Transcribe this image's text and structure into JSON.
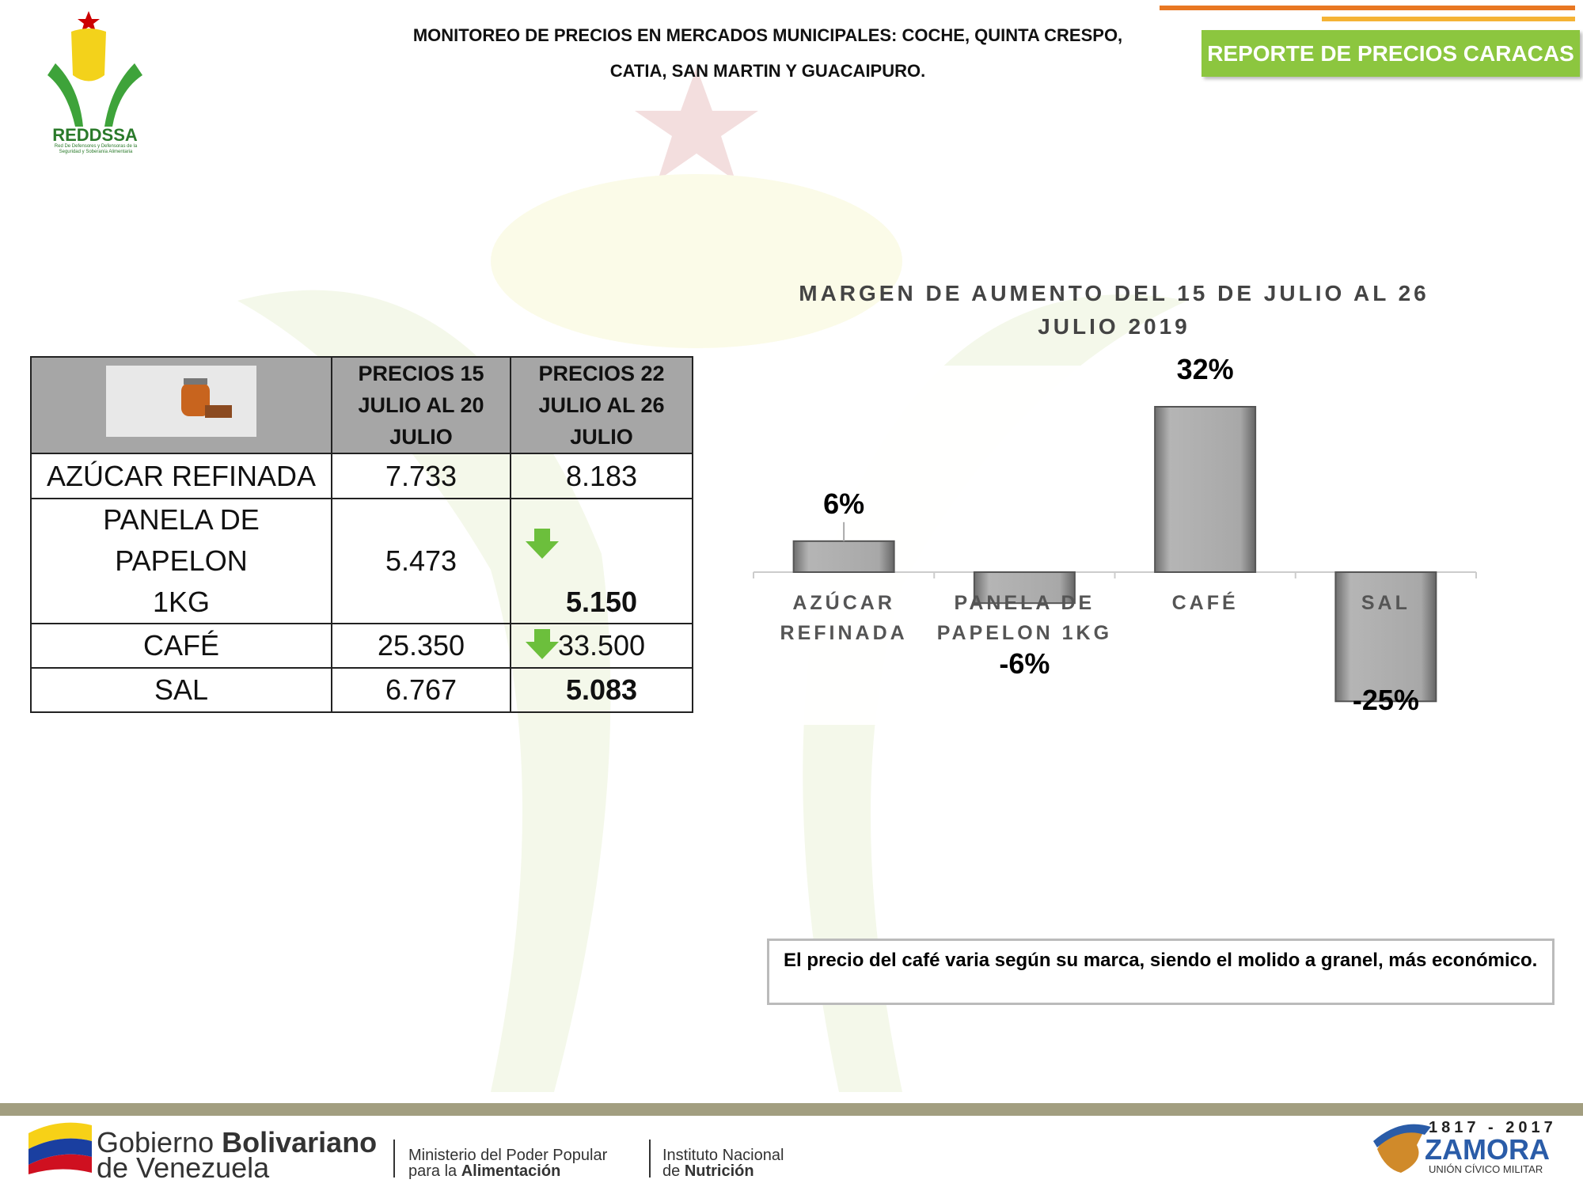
{
  "header": {
    "title_lines": [
      "MONITOREO DE PRECIOS EN MERCADOS MUNICIPALES: COCHE, QUINTA CRESPO,",
      "CATIA, SAN MARTIN Y GUACAIPURO."
    ],
    "badge": "REPORTE DE PRECIOS CARACAS",
    "logo_name": "REDDSSA",
    "logo_subtitle": "Red De Defensores y Defensoras de la Seguridad y Soberanía Alimentaria"
  },
  "table": {
    "header": [
      "PRECIOS 15 JULIO AL 20 JULIO",
      "PRECIOS 22 JULIO AL 26 JULIO"
    ],
    "rows": [
      [
        "AZÚCAR REFINADA",
        "7.733",
        "8.183"
      ],
      [
        "PANELA DE PAPELON 1KG",
        "5.473",
        "5.150"
      ],
      [
        "CAFÉ",
        "25.350",
        "33.500"
      ],
      [
        "SAL",
        "6.767",
        "5.083"
      ]
    ]
  },
  "chart_data": {
    "type": "bar",
    "title": "MARGEN DE AUMENTO DEL  15 DE JULIO AL 26 JULIO 2019",
    "categories": [
      "AZÚCAR REFINADA",
      "PANELA DE PAPELON 1KG",
      "CAFÉ",
      "SAL"
    ],
    "values": [
      6,
      -6,
      32,
      -25
    ],
    "value_labels": [
      "6%",
      "-6%",
      "32%",
      "-25%"
    ],
    "color": "#a0a0a0"
  },
  "note": "El precio del café varia según su marca, siendo el molido a granel, más económico.",
  "footer": {
    "gov_a": "Gobierno",
    "gov_b": "Bolivariano",
    "gov_c": "de Venezuela",
    "min_a": "Ministerio del Poder Popular",
    "min_b": "para la",
    "min_c": "Alimentación",
    "inst_a": "Instituto Nacional",
    "inst_b": "de",
    "inst_c": "Nutrición",
    "years": "1817 - 2017",
    "zamora": "ZAMORA",
    "union": "UNIÓN CÍVICO MILITAR"
  }
}
